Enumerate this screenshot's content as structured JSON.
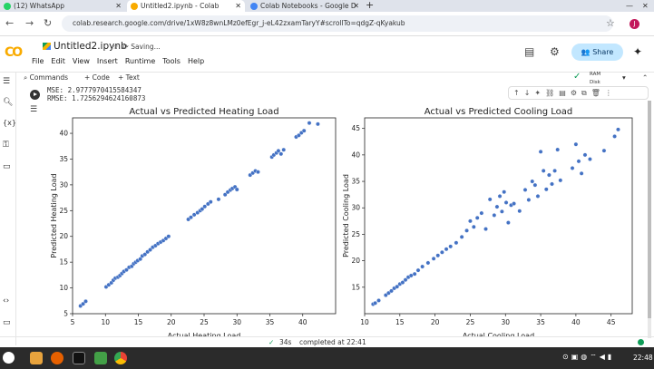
{
  "browser": {
    "tabs": [
      {
        "label": "(12) WhatsApp",
        "icon": "whatsapp-icon",
        "color": "#25d366"
      },
      {
        "label": "Untitled2.ipynb - Colab",
        "icon": "colab-icon",
        "color": "#f9ab00"
      },
      {
        "label": "Colab Notebooks - Google D",
        "icon": "drive-icon",
        "color": "#4285f4"
      }
    ],
    "url": "colab.research.google.com/drive/1xW8z8wnLMz0efEgr_j-eL42zxamTaryY#scrollTo=qdgZ-qKyakub",
    "profile_initial": "J"
  },
  "notebook": {
    "title": "Untitled2.ipynb",
    "saving": "Saving...",
    "menu": [
      "File",
      "Edit",
      "View",
      "Insert",
      "Runtime",
      "Tools",
      "Help"
    ],
    "share_label": "Share",
    "toolbar": {
      "commands": "Commands",
      "code": "+ Code",
      "text": "+ Text",
      "ram": "RAM",
      "disk": "Disk"
    },
    "output_lines": [
      "MSE: 2.9777970415584347",
      "RMSE: 1.7256294624160873"
    ],
    "status_time": "34s",
    "status_text": "completed at 22:41"
  },
  "taskbar": {
    "time": "22:48"
  },
  "chart_data": [
    {
      "type": "scatter",
      "title": "Actual vs Predicted Heating Load",
      "xlabel": "Actual Heating Load",
      "ylabel": "Predicted Heating Load",
      "xlim": [
        5,
        45
      ],
      "ylim": [
        5,
        43
      ],
      "xticks": [
        5,
        10,
        15,
        20,
        25,
        30,
        35,
        40
      ],
      "yticks": [
        5,
        10,
        15,
        20,
        25,
        30,
        35,
        40
      ],
      "color": "#4472c4",
      "x": [
        6.2,
        6.6,
        7.0,
        10.1,
        10.5,
        10.9,
        11.2,
        11.5,
        11.9,
        12.2,
        12.5,
        12.8,
        13.2,
        13.6,
        14.0,
        14.3,
        14.6,
        14.9,
        15.3,
        15.6,
        16.0,
        16.4,
        16.8,
        17.2,
        17.6,
        18.0,
        18.4,
        18.8,
        19.2,
        19.6,
        22.6,
        23.0,
        23.5,
        24.0,
        24.4,
        24.7,
        25.1,
        25.6,
        26.0,
        27.2,
        28.2,
        28.6,
        29.0,
        29.3,
        29.7,
        30.0,
        32.0,
        32.4,
        32.8,
        33.2,
        35.3,
        35.6,
        36.0,
        36.3,
        36.7,
        37.1,
        39.0,
        39.4,
        39.8,
        40.2,
        41.0,
        42.3
      ],
      "y": [
        6.5,
        6.9,
        7.4,
        10.2,
        10.6,
        11.0,
        11.5,
        11.9,
        12.1,
        12.4,
        12.8,
        13.2,
        13.5,
        14.0,
        14.2,
        14.7,
        15.0,
        15.3,
        15.6,
        16.2,
        16.5,
        17.0,
        17.4,
        17.9,
        18.2,
        18.6,
        18.9,
        19.2,
        19.6,
        20.0,
        23.3,
        23.7,
        24.2,
        24.6,
        25.0,
        25.3,
        25.8,
        26.3,
        26.7,
        27.2,
        28.1,
        28.6,
        29.0,
        29.3,
        29.6,
        29.1,
        31.9,
        32.3,
        32.7,
        32.5,
        35.4,
        35.8,
        36.2,
        36.6,
        36.0,
        36.8,
        39.3,
        39.6,
        40.1,
        40.5,
        42.0,
        41.8
      ]
    },
    {
      "type": "scatter",
      "title": "Actual vs Predicted Cooling Load",
      "xlabel": "Actual Cooling Load",
      "ylabel": "Predicted Cooling Load",
      "xlim": [
        10,
        48
      ],
      "ylim": [
        10,
        47
      ],
      "xticks": [
        10,
        15,
        20,
        25,
        30,
        35,
        40,
        45
      ],
      "yticks": [
        15,
        20,
        25,
        30,
        35,
        40,
        45
      ],
      "color": "#4472c4",
      "x": [
        11.2,
        11.5,
        12.0,
        13.0,
        13.4,
        13.8,
        14.2,
        14.6,
        15.0,
        15.4,
        15.8,
        16.2,
        16.6,
        17.1,
        17.6,
        18.2,
        19.0,
        19.8,
        20.4,
        21.0,
        21.6,
        22.2,
        23.0,
        23.8,
        24.5,
        25.0,
        25.5,
        26.0,
        26.6,
        27.2,
        27.8,
        28.4,
        28.8,
        29.2,
        29.5,
        29.8,
        30.1,
        30.4,
        30.8,
        31.2,
        32.0,
        32.8,
        33.3,
        33.8,
        34.2,
        34.6,
        35.0,
        35.4,
        35.8,
        36.2,
        36.6,
        37.0,
        37.4,
        37.8,
        39.5,
        40.0,
        40.4,
        40.8,
        41.3,
        42.0,
        44.0,
        45.5,
        46.0
      ],
      "y": [
        11.8,
        12.0,
        12.5,
        13.5,
        13.9,
        14.3,
        14.8,
        15.1,
        15.6,
        15.9,
        16.4,
        16.9,
        17.2,
        17.5,
        18.2,
        18.9,
        19.6,
        20.4,
        21.0,
        21.6,
        22.2,
        22.7,
        23.4,
        24.5,
        25.7,
        27.5,
        26.4,
        28.1,
        29.0,
        26.0,
        31.6,
        28.6,
        30.2,
        32.2,
        29.3,
        33.0,
        31.0,
        27.2,
        30.5,
        30.8,
        29.4,
        33.4,
        31.5,
        35.0,
        34.3,
        32.2,
        40.6,
        37.0,
        33.5,
        36.2,
        34.5,
        37.0,
        41.0,
        35.2,
        37.5,
        42.0,
        38.8,
        36.5,
        40.0,
        39.2,
        40.8,
        43.5,
        44.8
      ]
    }
  ]
}
